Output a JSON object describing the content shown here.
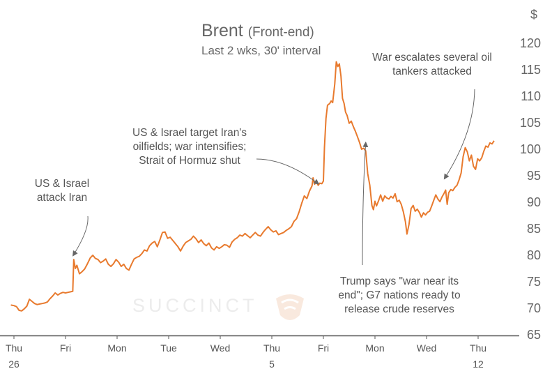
{
  "title": "Brent",
  "title_suffix": "(Front-end)",
  "subtitle": "Last 2 wks, 30' interval",
  "watermark": "SUCCINCT",
  "colors": {
    "line": "#e87a2e",
    "arrow": "#666666",
    "axis": "#555555"
  },
  "chart_data": {
    "type": "line",
    "title": "Brent (Front-end)",
    "subtitle": "Last 2 wks, 30' interval",
    "ylabel": "$",
    "ylim": [
      65,
      122
    ],
    "yticks": [
      65,
      70,
      75,
      80,
      85,
      90,
      95,
      100,
      105,
      110,
      115,
      120
    ],
    "y_axis_side": "right",
    "grid": false,
    "x_ticks": [
      {
        "label": "Thu",
        "sublabel": "26",
        "x": 0
      },
      {
        "label": "Fri",
        "sublabel": "",
        "x": 1
      },
      {
        "label": "Mon",
        "sublabel": "",
        "x": 2
      },
      {
        "label": "Tue",
        "sublabel": "",
        "x": 3
      },
      {
        "label": "Wed",
        "sublabel": "",
        "x": 4
      },
      {
        "label": "Thu",
        "sublabel": "5",
        "x": 5
      },
      {
        "label": "Fri",
        "sublabel": "",
        "x": 6
      },
      {
        "label": "Mon",
        "sublabel": "",
        "x": 7
      },
      {
        "label": "Wed",
        "sublabel": "",
        "x": 8
      },
      {
        "label": "Thu",
        "sublabel": "12",
        "x": 9
      }
    ],
    "series": [
      {
        "points": [
          [
            -0.06,
            70.6
          ],
          [
            0.0,
            70.5
          ],
          [
            0.05,
            70.3
          ],
          [
            0.1,
            69.6
          ],
          [
            0.15,
            69.5
          ],
          [
            0.2,
            69.9
          ],
          [
            0.25,
            70.4
          ],
          [
            0.3,
            71.7
          ],
          [
            0.35,
            71.3
          ],
          [
            0.4,
            70.9
          ],
          [
            0.45,
            70.7
          ],
          [
            0.5,
            70.8
          ],
          [
            0.55,
            70.9
          ],
          [
            0.6,
            71.0
          ],
          [
            0.65,
            71.2
          ],
          [
            0.7,
            71.8
          ],
          [
            0.75,
            72.3
          ],
          [
            0.8,
            72.9
          ],
          [
            0.85,
            72.5
          ],
          [
            0.9,
            72.8
          ],
          [
            0.95,
            73.0
          ],
          [
            1.0,
            72.9
          ],
          [
            1.05,
            73.0
          ],
          [
            1.1,
            73.1
          ],
          [
            1.14,
            73.2
          ],
          [
            1.16,
            79.2
          ],
          [
            1.19,
            77.5
          ],
          [
            1.22,
            78.1
          ],
          [
            1.27,
            76.5
          ],
          [
            1.32,
            76.9
          ],
          [
            1.37,
            77.4
          ],
          [
            1.42,
            78.3
          ],
          [
            1.48,
            79.5
          ],
          [
            1.53,
            80.0
          ],
          [
            1.58,
            79.4
          ],
          [
            1.63,
            79.2
          ],
          [
            1.68,
            78.6
          ],
          [
            1.73,
            78.9
          ],
          [
            1.78,
            79.3
          ],
          [
            1.83,
            78.3
          ],
          [
            1.88,
            77.9
          ],
          [
            1.93,
            78.4
          ],
          [
            1.98,
            79.2
          ],
          [
            2.03,
            78.7
          ],
          [
            2.08,
            77.9
          ],
          [
            2.13,
            78.3
          ],
          [
            2.18,
            77.5
          ],
          [
            2.23,
            77.2
          ],
          [
            2.28,
            78.3
          ],
          [
            2.33,
            79.3
          ],
          [
            2.38,
            79.6
          ],
          [
            2.43,
            79.8
          ],
          [
            2.48,
            80.3
          ],
          [
            2.53,
            81.0
          ],
          [
            2.58,
            80.8
          ],
          [
            2.63,
            81.8
          ],
          [
            2.68,
            82.3
          ],
          [
            2.73,
            82.6
          ],
          [
            2.78,
            81.6
          ],
          [
            2.83,
            82.9
          ],
          [
            2.88,
            84.3
          ],
          [
            2.93,
            84.4
          ],
          [
            2.98,
            83.2
          ],
          [
            3.03,
            83.4
          ],
          [
            3.08,
            82.8
          ],
          [
            3.13,
            82.2
          ],
          [
            3.18,
            81.6
          ],
          [
            3.23,
            80.8
          ],
          [
            3.28,
            81.7
          ],
          [
            3.33,
            82.4
          ],
          [
            3.38,
            82.7
          ],
          [
            3.43,
            83.0
          ],
          [
            3.48,
            83.6
          ],
          [
            3.53,
            83.1
          ],
          [
            3.58,
            82.4
          ],
          [
            3.63,
            82.9
          ],
          [
            3.68,
            82.2
          ],
          [
            3.73,
            81.8
          ],
          [
            3.78,
            82.3
          ],
          [
            3.83,
            81.4
          ],
          [
            3.88,
            81.0
          ],
          [
            3.93,
            81.6
          ],
          [
            3.98,
            81.3
          ],
          [
            4.03,
            81.6
          ],
          [
            4.08,
            82.0
          ],
          [
            4.13,
            81.9
          ],
          [
            4.18,
            81.5
          ],
          [
            4.23,
            82.5
          ],
          [
            4.28,
            83.0
          ],
          [
            4.33,
            83.3
          ],
          [
            4.38,
            83.8
          ],
          [
            4.43,
            83.6
          ],
          [
            4.48,
            84.1
          ],
          [
            4.53,
            83.7
          ],
          [
            4.58,
            83.3
          ],
          [
            4.63,
            83.8
          ],
          [
            4.68,
            84.3
          ],
          [
            4.73,
            83.8
          ],
          [
            4.78,
            83.6
          ],
          [
            4.83,
            84.3
          ],
          [
            4.88,
            84.9
          ],
          [
            4.93,
            85.4
          ],
          [
            4.98,
            84.8
          ],
          [
            5.03,
            84.4
          ],
          [
            5.08,
            84.6
          ],
          [
            5.13,
            83.9
          ],
          [
            5.18,
            84.1
          ],
          [
            5.23,
            84.3
          ],
          [
            5.28,
            84.7
          ],
          [
            5.33,
            85.0
          ],
          [
            5.38,
            85.4
          ],
          [
            5.43,
            86.4
          ],
          [
            5.48,
            86.9
          ],
          [
            5.53,
            88.2
          ],
          [
            5.58,
            89.8
          ],
          [
            5.63,
            91.2
          ],
          [
            5.68,
            90.7
          ],
          [
            5.73,
            92.1
          ],
          [
            5.78,
            93.1
          ],
          [
            5.8,
            94.6
          ],
          [
            5.83,
            93.4
          ],
          [
            5.86,
            93.9
          ],
          [
            5.9,
            93.2
          ],
          [
            5.93,
            93.6
          ],
          [
            5.97,
            93.5
          ],
          [
            6.0,
            94.0
          ],
          [
            6.02,
            100.3
          ],
          [
            6.05,
            105.8
          ],
          [
            6.08,
            108.3
          ],
          [
            6.12,
            108.6
          ],
          [
            6.15,
            109.1
          ],
          [
            6.18,
            108.8
          ],
          [
            6.22,
            112.3
          ],
          [
            6.25,
            116.5
          ],
          [
            6.28,
            115.6
          ],
          [
            6.31,
            116.1
          ],
          [
            6.34,
            113.8
          ],
          [
            6.37,
            109.6
          ],
          [
            6.4,
            108.7
          ],
          [
            6.43,
            107.0
          ],
          [
            6.46,
            106.4
          ],
          [
            6.5,
            104.9
          ],
          [
            6.54,
            105.3
          ],
          [
            6.58,
            104.3
          ],
          [
            6.62,
            103.4
          ],
          [
            6.66,
            102.4
          ],
          [
            6.7,
            101.3
          ],
          [
            6.74,
            100.0
          ],
          [
            6.78,
            100.2
          ],
          [
            6.82,
            99.7
          ],
          [
            6.86,
            95.4
          ],
          [
            6.9,
            93.2
          ],
          [
            6.94,
            89.4
          ],
          [
            6.97,
            88.6
          ],
          [
            7.0,
            90.2
          ],
          [
            7.03,
            89.3
          ],
          [
            7.07,
            90.3
          ],
          [
            7.11,
            91.4
          ],
          [
            7.15,
            90.2
          ],
          [
            7.19,
            91.2
          ],
          [
            7.23,
            90.8
          ],
          [
            7.27,
            90.6
          ],
          [
            7.31,
            91.1
          ],
          [
            7.35,
            90.8
          ],
          [
            7.39,
            91.6
          ],
          [
            7.43,
            90.1
          ],
          [
            7.47,
            90.4
          ],
          [
            7.51,
            89.6
          ],
          [
            7.55,
            88.2
          ],
          [
            7.59,
            86.3
          ],
          [
            7.62,
            84.0
          ],
          [
            7.66,
            85.8
          ],
          [
            7.7,
            88.8
          ],
          [
            7.74,
            89.4
          ],
          [
            7.78,
            88.3
          ],
          [
            7.82,
            88.7
          ],
          [
            7.86,
            88.1
          ],
          [
            7.9,
            87.2
          ],
          [
            7.94,
            88.0
          ],
          [
            7.98,
            87.6
          ],
          [
            8.02,
            88.1
          ],
          [
            8.06,
            88.3
          ],
          [
            8.1,
            89.3
          ],
          [
            8.14,
            90.4
          ],
          [
            8.18,
            91.4
          ],
          [
            8.22,
            90.6
          ],
          [
            8.26,
            90.1
          ],
          [
            8.3,
            91.0
          ],
          [
            8.34,
            91.7
          ],
          [
            8.37,
            92.3
          ],
          [
            8.4,
            89.6
          ],
          [
            8.43,
            91.8
          ],
          [
            8.47,
            92.4
          ],
          [
            8.51,
            92.2
          ],
          [
            8.55,
            92.8
          ],
          [
            8.59,
            93.2
          ],
          [
            8.63,
            94.2
          ],
          [
            8.67,
            95.5
          ],
          [
            8.71,
            98.6
          ],
          [
            8.75,
            100.3
          ],
          [
            8.79,
            99.5
          ],
          [
            8.83,
            97.8
          ],
          [
            8.87,
            98.9
          ],
          [
            8.91,
            96.8
          ],
          [
            8.95,
            96.2
          ],
          [
            8.99,
            98.2
          ],
          [
            9.03,
            97.8
          ],
          [
            9.07,
            98.4
          ],
          [
            9.11,
            99.6
          ],
          [
            9.15,
            100.6
          ],
          [
            9.19,
            100.4
          ],
          [
            9.23,
            101.2
          ],
          [
            9.27,
            101.0
          ],
          [
            9.31,
            101.6
          ]
        ]
      }
    ],
    "annotations": [
      {
        "text": "US & Israel\nattack Iran",
        "target": [
          1.15,
          80.0
        ]
      },
      {
        "text": "US & Israel target Iran's\noilfields; war intensifies;\nStrait of Hormuz shut",
        "target": [
          5.9,
          93.5
        ]
      },
      {
        "text": "War escalates several oil\ntankers attacked",
        "target": [
          8.35,
          94.5
        ]
      },
      {
        "text": "Trump says \"war near its\nend\"; G7 nations ready to\nrelease crude reserves",
        "target": [
          6.82,
          101.2
        ]
      }
    ]
  }
}
